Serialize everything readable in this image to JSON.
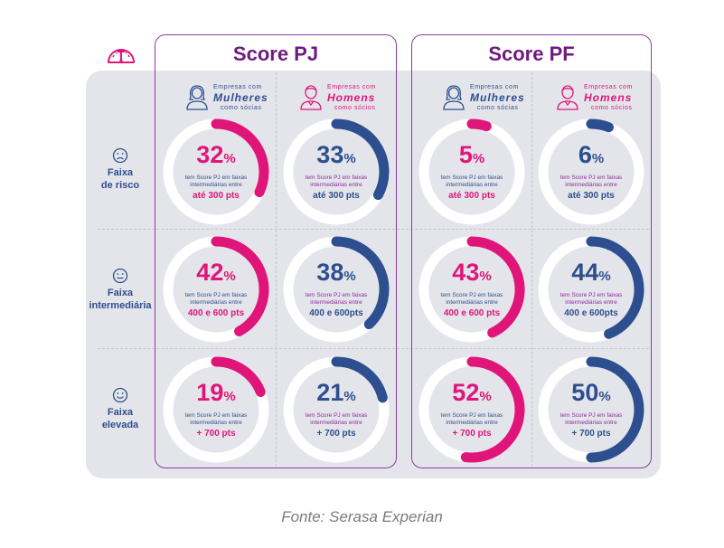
{
  "colors": {
    "pink": "#e0157a",
    "blue": "#2d4f8f",
    "purple": "#6e1a7e",
    "track": "#ffffff",
    "desc_on_pink": "#2d4f8f",
    "desc_on_blue": "#8a2d9c"
  },
  "icons": {
    "header": "gauge-icon",
    "rows": [
      "sad-face-icon",
      "neutral-face-icon",
      "happy-face-icon"
    ],
    "women": "woman-icon",
    "men": "man-icon"
  },
  "groups": [
    {
      "title": "Score PJ",
      "columns": [
        {
          "line1": "Empresas com",
          "line2": "Mulheres",
          "line3": "como sócias"
        },
        {
          "line1": "Empresas com",
          "line2": "Homens",
          "line3": "como sócios"
        }
      ]
    },
    {
      "title": "Score PF",
      "columns": [
        {
          "line1": "Empresas com",
          "line2": "Mulheres",
          "line3": "como sócias"
        },
        {
          "line1": "Empresas com",
          "line2": "Homens",
          "line3": "como sócios"
        }
      ]
    }
  ],
  "rows": [
    {
      "line1": "Faixa",
      "line2": "de risco"
    },
    {
      "line1": "Faixa",
      "line2": "intermediária"
    },
    {
      "line1": "Faixa",
      "line2": "elevada"
    }
  ],
  "cells": [
    [
      {
        "value": 32,
        "pct": "32",
        "desc1": "tem Score PJ em faixas",
        "desc2": "intermediárias entre",
        "range": "até 300 pts",
        "series": "women"
      },
      {
        "value": 33,
        "pct": "33",
        "desc1": "tem Score PJ em faixas",
        "desc2": "intermediárias entre",
        "range": "até 300 pts",
        "series": "men"
      },
      {
        "value": 5,
        "pct": "5",
        "desc1": "tem Score PJ em faixas",
        "desc2": "intermediárias entre",
        "range": "até 300 pts",
        "series": "women"
      },
      {
        "value": 6,
        "pct": "6",
        "desc1": "tem Score PJ em faixas",
        "desc2": "intermediárias entre",
        "range": "até 300 pts",
        "series": "men"
      }
    ],
    [
      {
        "value": 42,
        "pct": "42",
        "desc1": "tem Score PJ em faixas",
        "desc2": "intermediárias entre",
        "range": "400 e 600 pts",
        "series": "women"
      },
      {
        "value": 38,
        "pct": "38",
        "desc1": "tem Score PJ em faixas",
        "desc2": "intermediárias entre",
        "range": "400 e 600pts",
        "series": "men"
      },
      {
        "value": 43,
        "pct": "43",
        "desc1": "tem Score PJ em faixas",
        "desc2": "intermediárias entre",
        "range": "400 e 600 pts",
        "series": "women"
      },
      {
        "value": 44,
        "pct": "44",
        "desc1": "tem Score PJ em faixas",
        "desc2": "intermediárias entre",
        "range": "400 e 600pts",
        "series": "men"
      }
    ],
    [
      {
        "value": 19,
        "pct": "19",
        "desc1": "tem Score PJ em faixas",
        "desc2": "intermediárias entre",
        "range": "+ 700 pts",
        "series": "women"
      },
      {
        "value": 21,
        "pct": "21",
        "desc1": "tem Score PJ em faixas",
        "desc2": "intermediárias entre",
        "range": "+ 700 pts",
        "series": "men"
      },
      {
        "value": 52,
        "pct": "52",
        "desc1": "tem Score PJ em faixas",
        "desc2": "intermediárias entre",
        "range": "+ 700 pts",
        "series": "women"
      },
      {
        "value": 50,
        "pct": "50",
        "desc1": "tem Score PJ em faixas",
        "desc2": "intermediárias entre",
        "range": "+ 700 pts",
        "series": "men"
      }
    ]
  ],
  "percent_sign": "%",
  "source": "Fonte: Serasa Experian",
  "chart_data": {
    "type": "donut-grid",
    "title": "",
    "groups": [
      "Score PJ",
      "Score PF"
    ],
    "categories": [
      "Faixa de risco (até 300 pts)",
      "Faixa intermediária (400 e 600 pts)",
      "Faixa elevada (+ 700 pts)"
    ],
    "series": [
      {
        "name": "Score PJ - Empresas com Mulheres como sócias",
        "color": "#e0157a",
        "values": [
          32,
          42,
          19
        ]
      },
      {
        "name": "Score PJ - Empresas com Homens como sócios",
        "color": "#2d4f8f",
        "values": [
          33,
          38,
          21
        ]
      },
      {
        "name": "Score PF - Empresas com Mulheres como sócias",
        "color": "#e0157a",
        "values": [
          5,
          43,
          52
        ]
      },
      {
        "name": "Score PF - Empresas com Homens como sócios",
        "color": "#2d4f8f",
        "values": [
          6,
          44,
          50
        ]
      }
    ],
    "unit": "%",
    "ylim": [
      0,
      100
    ],
    "source": "Fonte: Serasa Experian"
  }
}
